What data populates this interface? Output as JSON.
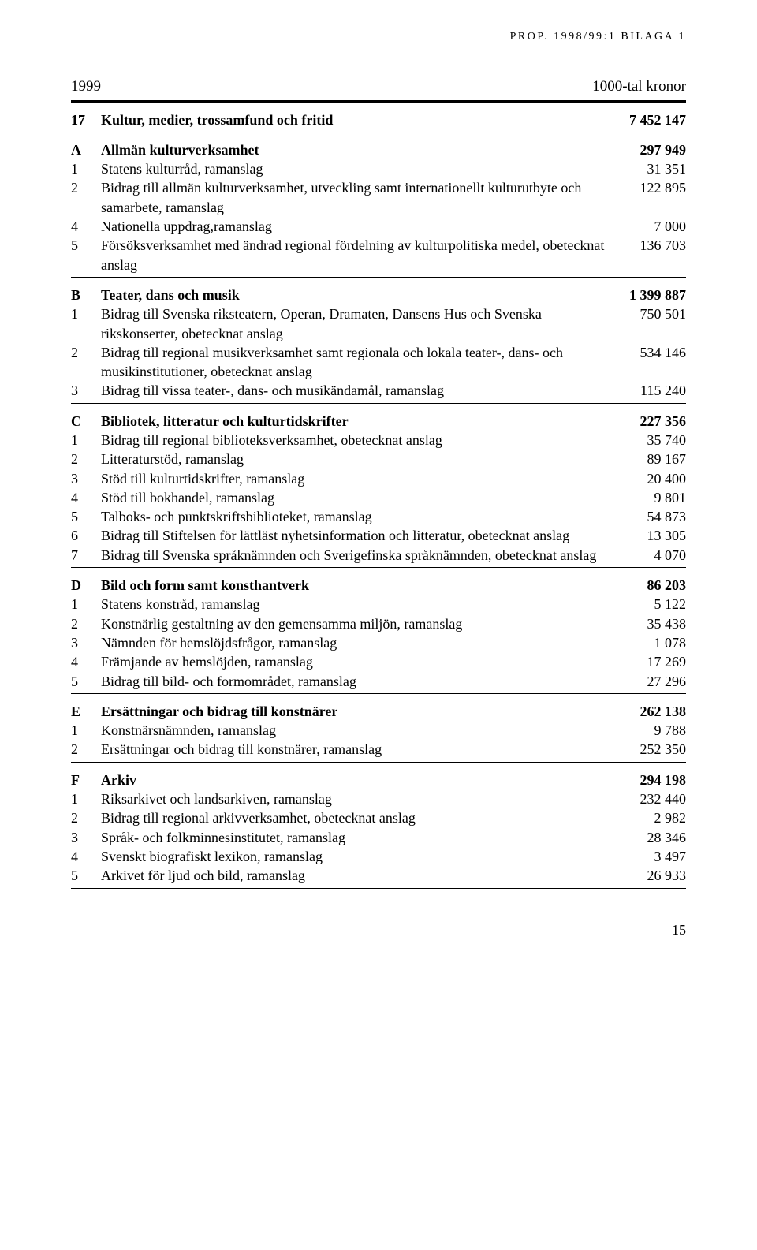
{
  "header": "PROP. 1998/99:1 BILAGA 1",
  "year": "1999",
  "unit": "1000-tal kronor",
  "title": {
    "code": "17",
    "label": "Kultur, medier, trossamfund och fritid",
    "value": "7 452 147"
  },
  "sections": [
    {
      "code": "A",
      "label": "Allmän kulturverksamhet",
      "value": "297 949",
      "rows": [
        {
          "code": "1",
          "label": "Statens kulturråd, ramanslag",
          "value": "31 351"
        },
        {
          "code": "2",
          "label": "Bidrag till allmän kulturverksamhet, utveckling samt internationellt kulturutbyte och samarbete, ramanslag",
          "value": "122 895"
        },
        {
          "code": "4",
          "label": "Nationella uppdrag,ramanslag",
          "value": "7 000"
        },
        {
          "code": "5",
          "label": "Försöksverksamhet med ändrad regional fördelning av kulturpolitiska medel, obetecknat anslag",
          "value": "136 703"
        }
      ]
    },
    {
      "code": "B",
      "label": "Teater, dans och musik",
      "value": "1 399 887",
      "rows": [
        {
          "code": "1",
          "label": "Bidrag till Svenska riksteatern, Operan, Dramaten, Dansens Hus och Svenska rikskonserter, obetecknat anslag",
          "value": "750 501"
        },
        {
          "code": "2",
          "label": "Bidrag till regional musikverksamhet samt regionala och lokala teater-, dans- och musikinstitutioner, obetecknat anslag",
          "value": "534 146"
        },
        {
          "code": "3",
          "label": "Bidrag till vissa teater-, dans- och musikändamål, ramanslag",
          "value": "115 240"
        }
      ]
    },
    {
      "code": "C",
      "label": "Bibliotek, litteratur och kulturtidskrifter",
      "value": "227 356",
      "rows": [
        {
          "code": "1",
          "label": "Bidrag till regional biblioteksverksamhet, obetecknat anslag",
          "value": "35 740"
        },
        {
          "code": "2",
          "label": "Litteraturstöd, ramanslag",
          "value": "89 167"
        },
        {
          "code": "3",
          "label": "Stöd till kulturtidskrifter, ramanslag",
          "value": "20 400"
        },
        {
          "code": "4",
          "label": "Stöd till bokhandel, ramanslag",
          "value": "9 801"
        },
        {
          "code": "5",
          "label": "Talboks- och punktskriftsbiblioteket, ramanslag",
          "value": "54 873"
        },
        {
          "code": "6",
          "label": "Bidrag till Stiftelsen för lättläst nyhetsinformation och litteratur, obetecknat anslag",
          "value": "13 305"
        },
        {
          "code": "7",
          "label": "Bidrag till Svenska språknämnden och Sverigefinska språknämnden, obetecknat anslag",
          "value": "4 070"
        }
      ]
    },
    {
      "code": "D",
      "label": "Bild och form samt konsthantverk",
      "value": "86 203",
      "rows": [
        {
          "code": "1",
          "label": "Statens konstråd, ramanslag",
          "value": "5 122"
        },
        {
          "code": "2",
          "label": "Konstnärlig gestaltning av den gemensamma miljön, ramanslag",
          "value": "35 438"
        },
        {
          "code": "3",
          "label": "Nämnden för hemslöjdsfrågor, ramanslag",
          "value": "1 078"
        },
        {
          "code": "4",
          "label": "Främjande av hemslöjden, ramanslag",
          "value": "17 269"
        },
        {
          "code": "5",
          "label": "Bidrag till bild- och formområdet, ramanslag",
          "value": "27 296"
        }
      ]
    },
    {
      "code": "E",
      "label": "Ersättningar och bidrag till konstnärer",
      "value": "262 138",
      "rows": [
        {
          "code": "1",
          "label": "Konstnärsnämnden, ramanslag",
          "value": "9 788"
        },
        {
          "code": "2",
          "label": "Ersättningar och bidrag till konstnärer, ramanslag",
          "value": "252 350"
        }
      ]
    },
    {
      "code": "F",
      "label": "Arkiv",
      "value": "294 198",
      "rows": [
        {
          "code": "1",
          "label": "Riksarkivet och landsarkiven, ramanslag",
          "value": "232 440"
        },
        {
          "code": "2",
          "label": "Bidrag till regional arkivverksamhet, obetecknat anslag",
          "value": "2 982"
        },
        {
          "code": "3",
          "label": "Språk- och folkminnesinstitutet, ramanslag",
          "value": "28 346"
        },
        {
          "code": "4",
          "label": "Svenskt biografiskt lexikon, ramanslag",
          "value": "3 497"
        },
        {
          "code": "5",
          "label": "Arkivet för ljud och bild, ramanslag",
          "value": "26 933"
        }
      ]
    }
  ],
  "page_number": "15"
}
